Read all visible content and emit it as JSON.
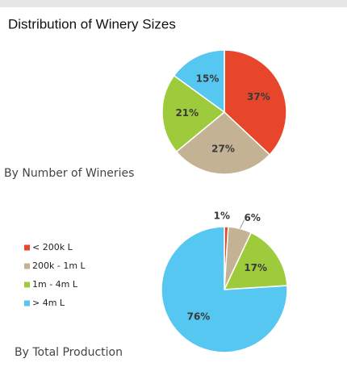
{
  "chart_data": [
    {
      "type": "pie",
      "title": "Distribution of Winery Sizes",
      "caption": "By Number of Wineries",
      "categories": [
        "< 200k L",
        "200k - 1m L",
        "1m - 4m L",
        "> 4m L"
      ],
      "values": [
        37,
        27,
        21,
        15
      ],
      "value_labels": [
        "37%",
        "27%",
        "21%",
        "15%"
      ],
      "colors": [
        "#e8462a",
        "#c4b294",
        "#9ecb3c",
        "#55c7f0"
      ]
    },
    {
      "type": "pie",
      "caption": "By Total Production",
      "categories": [
        "< 200k L",
        "200k - 1m L",
        "1m - 4m L",
        "> 4m L"
      ],
      "values": [
        1,
        6,
        17,
        76
      ],
      "value_labels": [
        "1%",
        "6%",
        "17%",
        "76%"
      ],
      "colors": [
        "#e8462a",
        "#c4b294",
        "#9ecb3c",
        "#55c7f0"
      ],
      "legend": "left"
    }
  ]
}
